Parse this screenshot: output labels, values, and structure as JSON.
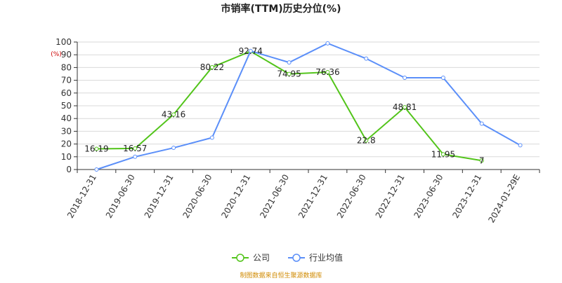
{
  "chart_data": {
    "type": "line",
    "title": "市销率(TTM)历史分位(%)",
    "y_unit": "(%)",
    "ylim": [
      0,
      100
    ],
    "yticks": [
      0,
      10,
      20,
      30,
      40,
      50,
      60,
      70,
      80,
      90,
      100
    ],
    "categories": [
      "2018-12-31",
      "2019-06-30",
      "2019-12-31",
      "2020-06-30",
      "2020-12-31",
      "2021-06-30",
      "2021-12-31",
      "2022-06-30",
      "2022-12-31",
      "2023-06-30",
      "2023-12-31",
      "2024-01-29E"
    ],
    "series": [
      {
        "name": "公司",
        "color": "#52c41a",
        "values": [
          16.19,
          16.57,
          43.16,
          80.22,
          92.74,
          74.95,
          76.36,
          22.8,
          48.81,
          11.95,
          7,
          null
        ],
        "labels": [
          "16.19",
          "16.57",
          "43.16",
          "80.22",
          "92.74",
          "74.95",
          "76.36",
          "22.8",
          "48.81",
          "11.95",
          "7",
          ""
        ]
      },
      {
        "name": "行业均值",
        "color": "#5b8ff9",
        "values": [
          0,
          10,
          17,
          25,
          93,
          84,
          99,
          87,
          72,
          72,
          36,
          19
        ]
      }
    ],
    "grid": true,
    "legend": "bottom-center",
    "source": "制图数据来自恒生聚源数据库"
  }
}
